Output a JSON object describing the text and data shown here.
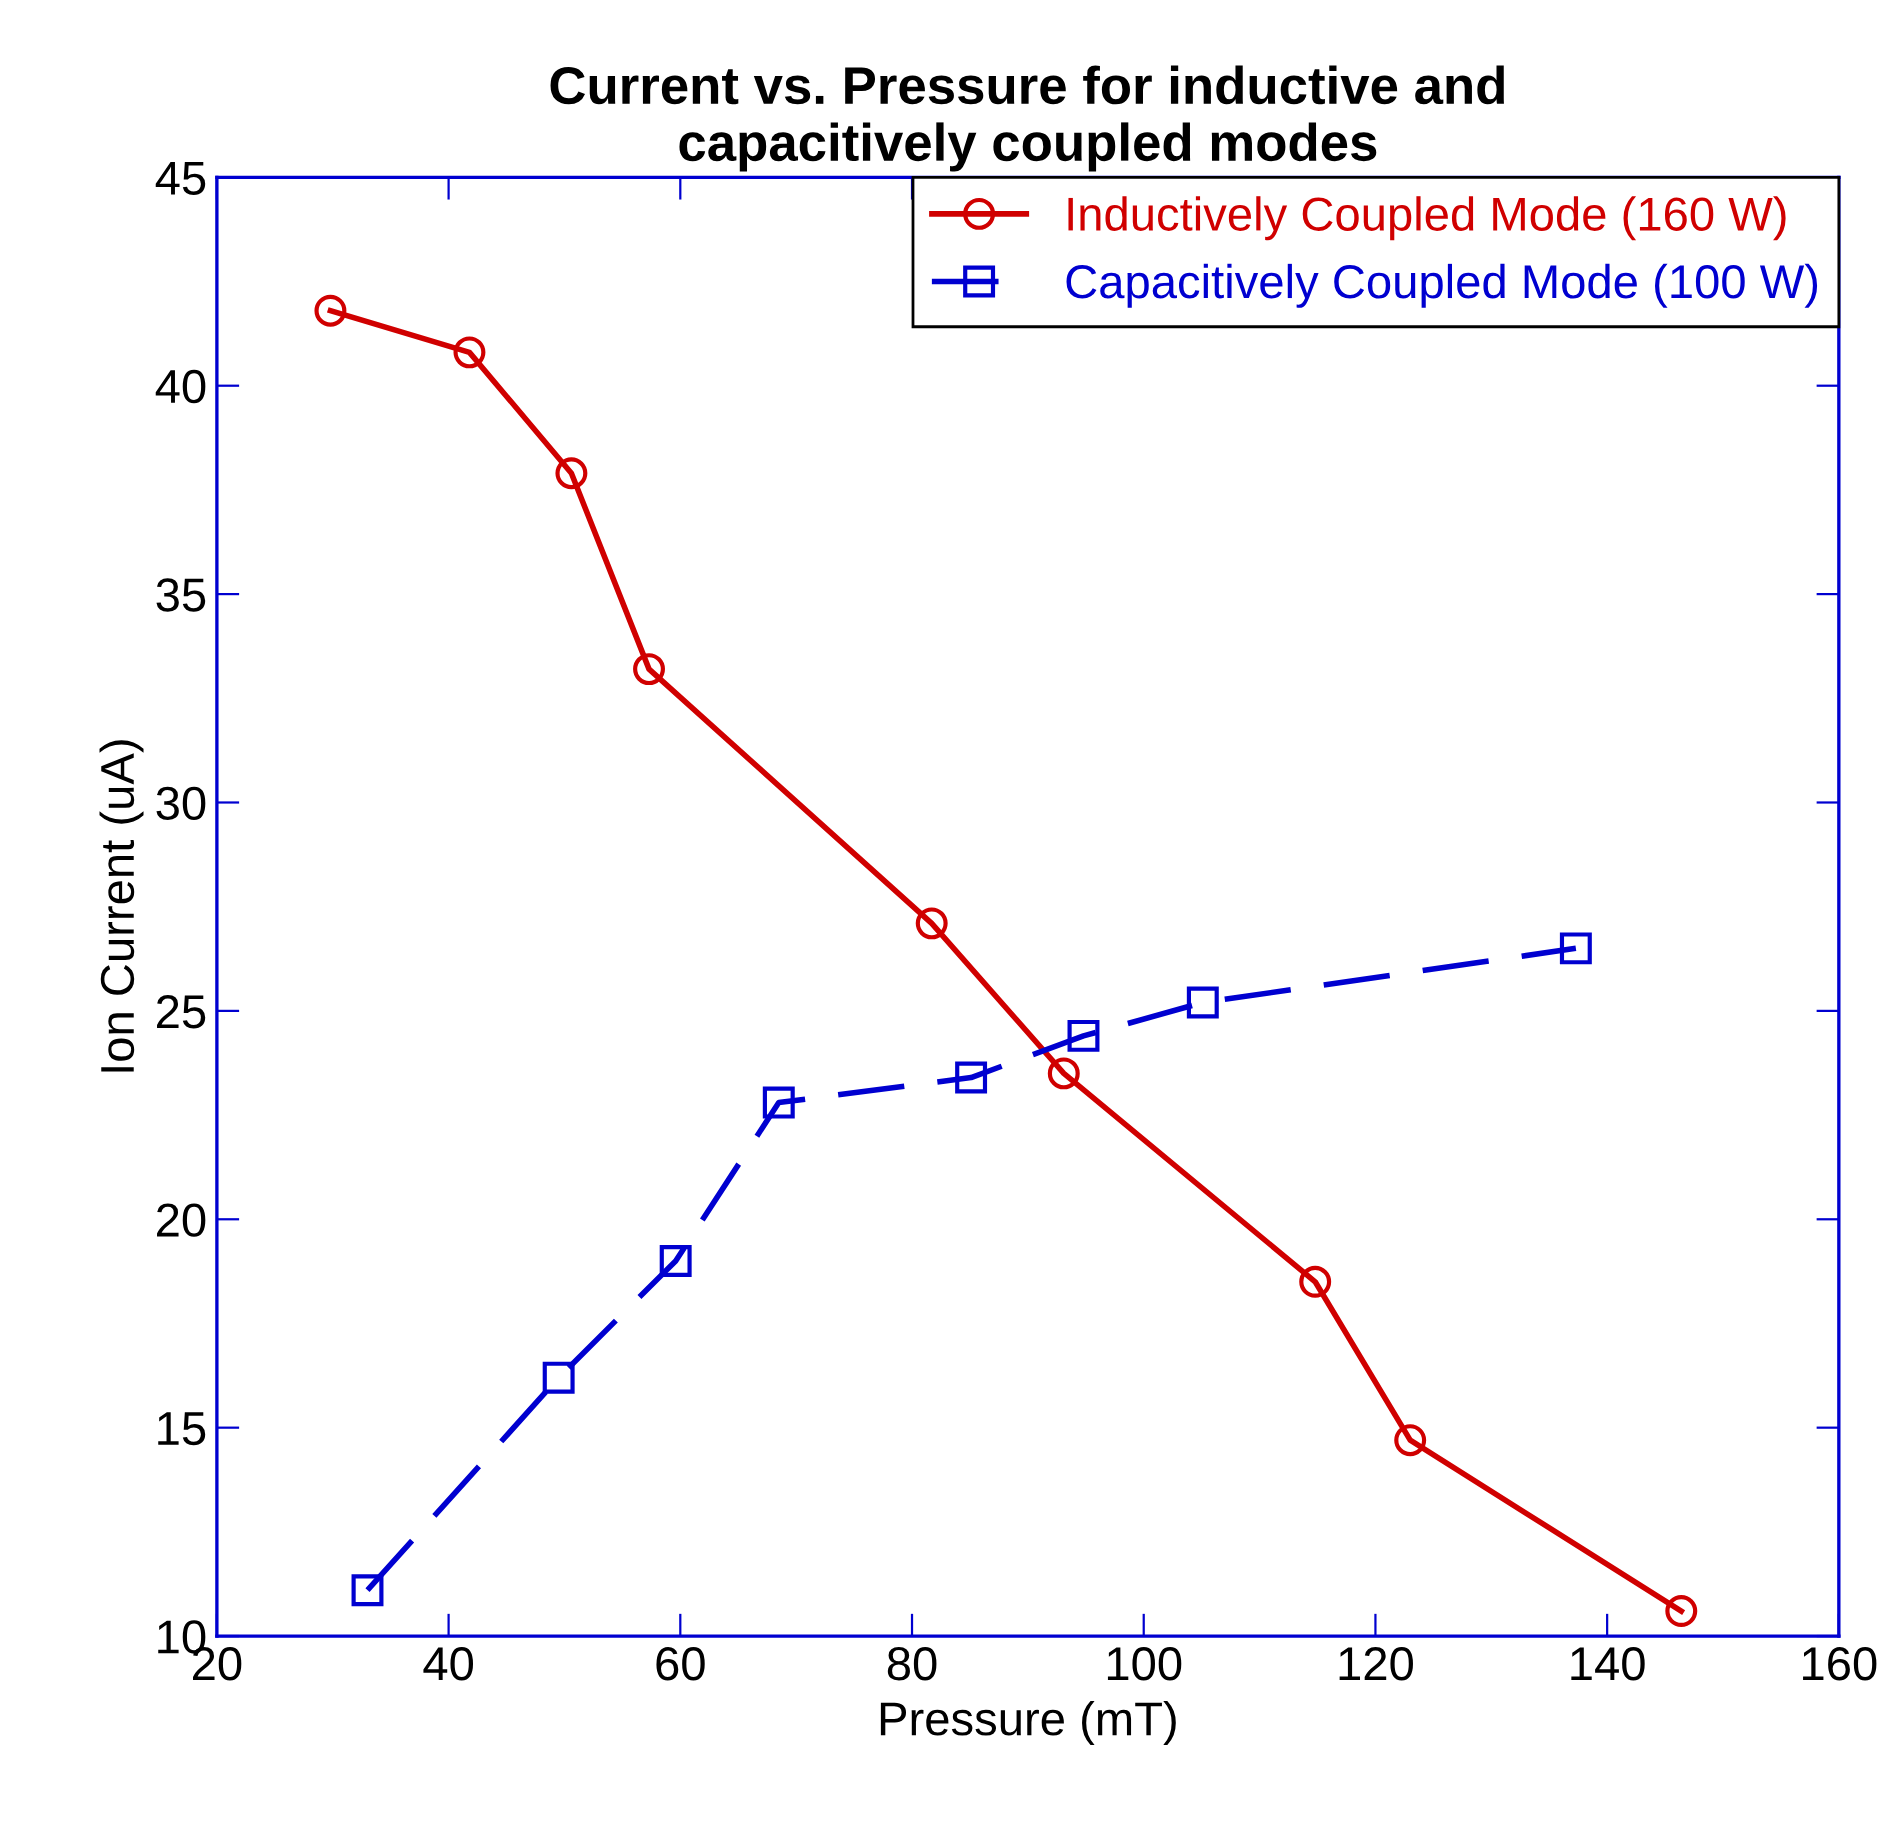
{
  "chart_data": {
    "type": "line",
    "title": "Current vs. Pressure for inductive and\ncapacitively coupled modes",
    "xlabel": "Pressure (mT)",
    "ylabel": "Ion Current (uA)",
    "xlim": [
      20,
      160
    ],
    "xticks": [
      20,
      40,
      60,
      80,
      100,
      120,
      140,
      160
    ],
    "ylim": [
      10,
      45
    ],
    "yticks": [
      10,
      15,
      20,
      25,
      30,
      35,
      40,
      45
    ],
    "grid": false,
    "legend": "top right",
    "series": [
      {
        "name": "Inductively Coupled Mode (160 W)",
        "color": "#d00000",
        "marker": "circle",
        "line_style": "solid",
        "x": [
          29.8,
          41.8,
          50.6,
          57.3,
          81.7,
          93.1,
          114.8,
          123,
          146.4
        ],
        "values": [
          41.8,
          40.8,
          37.9,
          33.2,
          27.1,
          23.5,
          18.5,
          14.7,
          10.6
        ]
      },
      {
        "name": "Capacitively Coupled Mode (100 W)",
        "color": "#0000d0",
        "marker": "square",
        "line_style": "dashed",
        "x": [
          33,
          49.5,
          59.6,
          68.5,
          85.1,
          94.8,
          105.1,
          137.3
        ],
        "values": [
          11.1,
          16.2,
          19.0,
          22.8,
          23.4,
          24.4,
          25.2,
          26.5
        ]
      }
    ]
  }
}
